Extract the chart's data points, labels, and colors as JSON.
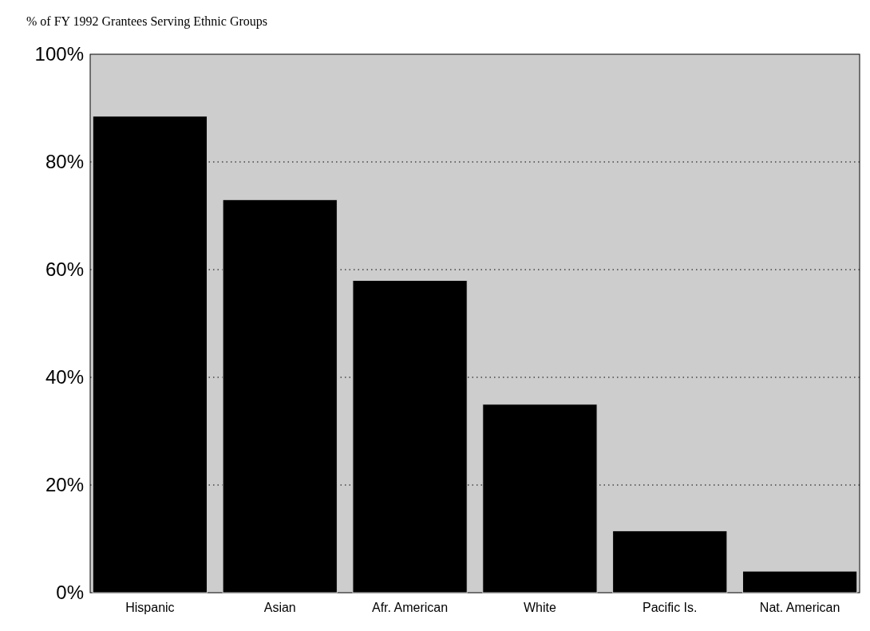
{
  "chart_data": {
    "type": "bar",
    "title": "% of FY 1992 Grantees Serving Ethnic Groups",
    "categories": [
      "Hispanic",
      "Asian",
      "Afr. American",
      "White",
      "Pacific Is.",
      "Nat. American"
    ],
    "values": [
      88.5,
      73,
      58,
      35,
      11.5,
      4
    ],
    "color": "#000000",
    "ylim": [
      0,
      100
    ],
    "yticks": [
      {
        "value": 0,
        "label": "0%"
      },
      {
        "value": 20,
        "label": "20%"
      },
      {
        "value": 40,
        "label": "40%"
      },
      {
        "value": 60,
        "label": "60%"
      },
      {
        "value": 80,
        "label": "80%"
      },
      {
        "value": 100,
        "label": "100%"
      }
    ],
    "grid": "y"
  }
}
